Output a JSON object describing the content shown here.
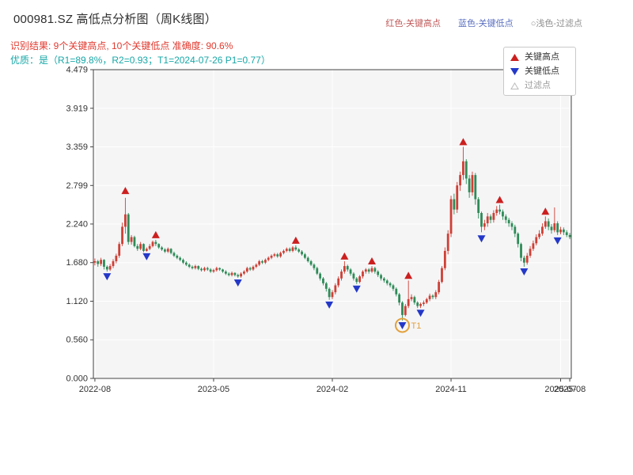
{
  "header": {
    "title": "000981.SZ 高低点分析图（周K线图）",
    "legend_inline": [
      {
        "label": "红色-关键高点",
        "color": "#c05a5a"
      },
      {
        "label": "蓝色-关键低点",
        "color": "#5a6fc0"
      },
      {
        "label": "○浅色-过滤点",
        "color": "#8f8f8f"
      }
    ],
    "result_line": "识别结果: 9个关键高点, 10个关键低点  准确度: 90.6%",
    "result_color": "#e03a2f",
    "quality_line": "优质：是（R1=89.8%，R2=0.93；T1=2024-07-26 P1=0.77）",
    "quality_color": "#18a7a7"
  },
  "chart_data": {
    "type": "candlestick",
    "title": "000981.SZ 高低点分析图（周K线图）",
    "symbol": "000981.SZ",
    "period": "weekly",
    "ylim": [
      0,
      4.479
    ],
    "yticks": [
      "0.000",
      "0.560",
      "1.120",
      "1.680",
      "2.240",
      "2.799",
      "3.359",
      "3.919",
      "4.479"
    ],
    "xticks": [
      {
        "index": 0,
        "label": "2022-08"
      },
      {
        "index": 39,
        "label": "2023-05"
      },
      {
        "index": 78,
        "label": "2024-02"
      },
      {
        "index": 117,
        "label": "2024-11"
      },
      {
        "index": 153,
        "label": "2025-07"
      },
      {
        "index": 156,
        "label": "2025-08"
      }
    ],
    "grid": true,
    "candles": [
      [
        1.68,
        1.74,
        1.64,
        1.7
      ],
      [
        1.7,
        1.72,
        1.62,
        1.66
      ],
      [
        1.66,
        1.75,
        1.63,
        1.72
      ],
      [
        1.72,
        1.73,
        1.58,
        1.62
      ],
      [
        1.62,
        1.64,
        1.55,
        1.58
      ],
      [
        1.58,
        1.66,
        1.56,
        1.63
      ],
      [
        1.63,
        1.73,
        1.6,
        1.7
      ],
      [
        1.7,
        1.81,
        1.67,
        1.78
      ],
      [
        1.78,
        1.98,
        1.75,
        1.95
      ],
      [
        1.95,
        2.26,
        1.92,
        2.2
      ],
      [
        2.2,
        2.62,
        2.1,
        2.38
      ],
      [
        2.38,
        2.4,
        1.94,
        1.98
      ],
      [
        1.98,
        2.08,
        1.94,
        2.05
      ],
      [
        2.05,
        2.07,
        1.9,
        1.92
      ],
      [
        1.92,
        1.95,
        1.85,
        1.88
      ],
      [
        1.88,
        1.98,
        1.86,
        1.95
      ],
      [
        1.95,
        1.96,
        1.83,
        1.85
      ],
      [
        1.85,
        1.9,
        1.84,
        1.88
      ],
      [
        1.88,
        1.95,
        1.86,
        1.92
      ],
      [
        1.92,
        2.0,
        1.9,
        1.98
      ],
      [
        1.98,
        2.01,
        1.92,
        1.95
      ],
      [
        1.95,
        1.96,
        1.88,
        1.9
      ],
      [
        1.9,
        1.92,
        1.85,
        1.87
      ],
      [
        1.87,
        1.89,
        1.82,
        1.84
      ],
      [
        1.84,
        1.9,
        1.82,
        1.88
      ],
      [
        1.88,
        1.89,
        1.8,
        1.82
      ],
      [
        1.82,
        1.84,
        1.76,
        1.78
      ],
      [
        1.78,
        1.8,
        1.73,
        1.75
      ],
      [
        1.75,
        1.77,
        1.7,
        1.72
      ],
      [
        1.72,
        1.74,
        1.66,
        1.68
      ],
      [
        1.68,
        1.7,
        1.63,
        1.65
      ],
      [
        1.65,
        1.67,
        1.6,
        1.62
      ],
      [
        1.62,
        1.64,
        1.58,
        1.6
      ],
      [
        1.6,
        1.65,
        1.58,
        1.63
      ],
      [
        1.63,
        1.64,
        1.57,
        1.59
      ],
      [
        1.59,
        1.61,
        1.55,
        1.57
      ],
      [
        1.57,
        1.62,
        1.55,
        1.6
      ],
      [
        1.6,
        1.62,
        1.56,
        1.58
      ],
      [
        1.58,
        1.6,
        1.53,
        1.55
      ],
      [
        1.55,
        1.59,
        1.53,
        1.57
      ],
      [
        1.57,
        1.62,
        1.55,
        1.6
      ],
      [
        1.6,
        1.61,
        1.56,
        1.58
      ],
      [
        1.58,
        1.59,
        1.53,
        1.55
      ],
      [
        1.55,
        1.57,
        1.5,
        1.52
      ],
      [
        1.52,
        1.54,
        1.48,
        1.5
      ],
      [
        1.5,
        1.55,
        1.48,
        1.53
      ],
      [
        1.53,
        1.54,
        1.48,
        1.5
      ],
      [
        1.5,
        1.52,
        1.46,
        1.48
      ],
      [
        1.48,
        1.54,
        1.46,
        1.52
      ],
      [
        1.52,
        1.57,
        1.5,
        1.55
      ],
      [
        1.55,
        1.62,
        1.53,
        1.6
      ],
      [
        1.6,
        1.62,
        1.56,
        1.58
      ],
      [
        1.58,
        1.64,
        1.56,
        1.62
      ],
      [
        1.62,
        1.67,
        1.6,
        1.65
      ],
      [
        1.65,
        1.72,
        1.63,
        1.7
      ],
      [
        1.7,
        1.72,
        1.66,
        1.68
      ],
      [
        1.68,
        1.74,
        1.66,
        1.72
      ],
      [
        1.72,
        1.77,
        1.7,
        1.75
      ],
      [
        1.75,
        1.8,
        1.73,
        1.78
      ],
      [
        1.78,
        1.82,
        1.76,
        1.8
      ],
      [
        1.8,
        1.82,
        1.75,
        1.77
      ],
      [
        1.77,
        1.84,
        1.75,
        1.82
      ],
      [
        1.82,
        1.87,
        1.8,
        1.85
      ],
      [
        1.85,
        1.9,
        1.83,
        1.88
      ],
      [
        1.88,
        1.9,
        1.83,
        1.85
      ],
      [
        1.85,
        1.92,
        1.83,
        1.9
      ],
      [
        1.9,
        1.93,
        1.85,
        1.87
      ],
      [
        1.87,
        1.89,
        1.82,
        1.84
      ],
      [
        1.84,
        1.86,
        1.78,
        1.8
      ],
      [
        1.8,
        1.82,
        1.73,
        1.75
      ],
      [
        1.75,
        1.77,
        1.68,
        1.7
      ],
      [
        1.7,
        1.72,
        1.63,
        1.65
      ],
      [
        1.65,
        1.67,
        1.57,
        1.6
      ],
      [
        1.6,
        1.62,
        1.5,
        1.52
      ],
      [
        1.52,
        1.54,
        1.42,
        1.45
      ],
      [
        1.45,
        1.47,
        1.35,
        1.38
      ],
      [
        1.38,
        1.4,
        1.26,
        1.3
      ],
      [
        1.3,
        1.32,
        1.14,
        1.18
      ],
      [
        1.18,
        1.28,
        1.15,
        1.25
      ],
      [
        1.25,
        1.38,
        1.22,
        1.35
      ],
      [
        1.35,
        1.48,
        1.32,
        1.45
      ],
      [
        1.45,
        1.58,
        1.42,
        1.55
      ],
      [
        1.55,
        1.7,
        1.52,
        1.63
      ],
      [
        1.63,
        1.65,
        1.55,
        1.58
      ],
      [
        1.58,
        1.6,
        1.49,
        1.52
      ],
      [
        1.52,
        1.54,
        1.42,
        1.45
      ],
      [
        1.45,
        1.47,
        1.37,
        1.4
      ],
      [
        1.4,
        1.5,
        1.38,
        1.48
      ],
      [
        1.48,
        1.57,
        1.45,
        1.55
      ],
      [
        1.55,
        1.6,
        1.52,
        1.58
      ],
      [
        1.58,
        1.6,
        1.52,
        1.55
      ],
      [
        1.55,
        1.63,
        1.53,
        1.6
      ],
      [
        1.6,
        1.62,
        1.52,
        1.55
      ],
      [
        1.55,
        1.57,
        1.47,
        1.5
      ],
      [
        1.5,
        1.52,
        1.42,
        1.45
      ],
      [
        1.45,
        1.47,
        1.39,
        1.42
      ],
      [
        1.42,
        1.44,
        1.35,
        1.38
      ],
      [
        1.38,
        1.4,
        1.32,
        1.35
      ],
      [
        1.35,
        1.37,
        1.27,
        1.3
      ],
      [
        1.3,
        1.32,
        1.19,
        1.22
      ],
      [
        1.22,
        1.24,
        1.06,
        1.1
      ],
      [
        1.1,
        1.12,
        0.84,
        0.92
      ],
      [
        0.92,
        1.08,
        0.9,
        1.05
      ],
      [
        1.05,
        1.42,
        1.02,
        1.15
      ],
      [
        1.15,
        1.22,
        1.12,
        1.18
      ],
      [
        1.18,
        1.2,
        1.07,
        1.1
      ],
      [
        1.1,
        1.12,
        1.02,
        1.05
      ],
      [
        1.05,
        1.1,
        1.02,
        1.08
      ],
      [
        1.08,
        1.13,
        1.05,
        1.1
      ],
      [
        1.1,
        1.17,
        1.08,
        1.15
      ],
      [
        1.15,
        1.23,
        1.12,
        1.2
      ],
      [
        1.2,
        1.22,
        1.15,
        1.18
      ],
      [
        1.18,
        1.28,
        1.15,
        1.25
      ],
      [
        1.25,
        1.43,
        1.22,
        1.4
      ],
      [
        1.4,
        1.63,
        1.38,
        1.6
      ],
      [
        1.6,
        1.9,
        1.57,
        1.85
      ],
      [
        1.85,
        2.15,
        1.8,
        2.1
      ],
      [
        2.1,
        2.65,
        2.05,
        2.6
      ],
      [
        2.6,
        2.68,
        2.38,
        2.45
      ],
      [
        2.45,
        2.85,
        2.4,
        2.8
      ],
      [
        2.8,
        3.0,
        2.72,
        2.95
      ],
      [
        2.95,
        3.36,
        2.88,
        3.15
      ],
      [
        3.15,
        3.18,
        2.82,
        2.9
      ],
      [
        2.9,
        2.95,
        2.62,
        2.7
      ],
      [
        2.7,
        3.0,
        2.65,
        2.95
      ],
      [
        2.95,
        2.98,
        2.52,
        2.6
      ],
      [
        2.6,
        2.63,
        2.32,
        2.4
      ],
      [
        2.4,
        2.42,
        2.12,
        2.2
      ],
      [
        2.2,
        2.3,
        2.15,
        2.25
      ],
      [
        2.25,
        2.4,
        2.2,
        2.35
      ],
      [
        2.35,
        2.38,
        2.25,
        2.3
      ],
      [
        2.3,
        2.44,
        2.26,
        2.4
      ],
      [
        2.4,
        2.5,
        2.36,
        2.45
      ],
      [
        2.45,
        2.52,
        2.38,
        2.42
      ],
      [
        2.42,
        2.45,
        2.3,
        2.35
      ],
      [
        2.35,
        2.38,
        2.25,
        2.3
      ],
      [
        2.3,
        2.33,
        2.2,
        2.25
      ],
      [
        2.25,
        2.28,
        2.15,
        2.2
      ],
      [
        2.2,
        2.23,
        2.05,
        2.1
      ],
      [
        2.1,
        2.12,
        1.9,
        1.95
      ],
      [
        1.95,
        1.97,
        1.7,
        1.75
      ],
      [
        1.75,
        1.78,
        1.62,
        1.68
      ],
      [
        1.68,
        1.82,
        1.65,
        1.78
      ],
      [
        1.78,
        1.92,
        1.75,
        1.88
      ],
      [
        1.88,
        2.0,
        1.85,
        1.96
      ],
      [
        1.96,
        2.09,
        1.93,
        2.05
      ],
      [
        2.05,
        2.15,
        2.02,
        2.1
      ],
      [
        2.1,
        2.25,
        2.07,
        2.2
      ],
      [
        2.2,
        2.35,
        2.17,
        2.28
      ],
      [
        2.28,
        2.32,
        2.15,
        2.2
      ],
      [
        2.2,
        2.24,
        2.1,
        2.15
      ],
      [
        2.15,
        2.48,
        2.12,
        2.25
      ],
      [
        2.25,
        2.28,
        2.08,
        2.12
      ],
      [
        2.12,
        2.2,
        2.09,
        2.16
      ],
      [
        2.16,
        2.19,
        2.08,
        2.12
      ],
      [
        2.12,
        2.15,
        2.05,
        2.08
      ],
      [
        2.08,
        2.11,
        2.02,
        2.05
      ]
    ],
    "key_highs": [
      {
        "i": 10,
        "p": 2.72
      },
      {
        "i": 20,
        "p": 2.08
      },
      {
        "i": 66,
        "p": 2.0
      },
      {
        "i": 82,
        "p": 1.77
      },
      {
        "i": 91,
        "p": 1.7
      },
      {
        "i": 103,
        "p": 1.49
      },
      {
        "i": 121,
        "p": 3.43
      },
      {
        "i": 133,
        "p": 2.59
      },
      {
        "i": 148,
        "p": 2.42
      }
    ],
    "key_lows": [
      {
        "i": 4,
        "p": 1.48
      },
      {
        "i": 17,
        "p": 1.77
      },
      {
        "i": 47,
        "p": 1.39
      },
      {
        "i": 77,
        "p": 1.07
      },
      {
        "i": 86,
        "p": 1.3
      },
      {
        "i": 101,
        "p": 0.77,
        "circled": true,
        "label": "T1"
      },
      {
        "i": 107,
        "p": 0.95
      },
      {
        "i": 127,
        "p": 2.03
      },
      {
        "i": 141,
        "p": 1.55
      },
      {
        "i": 152,
        "p": 2.0
      }
    ],
    "filtered_points": [],
    "colors": {
      "up": "#cf3f35",
      "down": "#2e8b57",
      "key_high": "#cc1f1f",
      "key_low": "#2438c8",
      "filtered": "#bbbbbb",
      "highlight": "#e2a13c",
      "plot_bg": "#f5f5f6",
      "grid": "#ffffff",
      "spine": "#444444"
    },
    "legend": [
      {
        "label": "关键高点",
        "marker": "up-triangle",
        "color": "#cc1f1f"
      },
      {
        "label": "关键低点",
        "marker": "down-triangle",
        "color": "#2438c8"
      },
      {
        "label": "过滤点",
        "marker": "hollow-triangle",
        "color": "#bbbbbb"
      }
    ]
  }
}
